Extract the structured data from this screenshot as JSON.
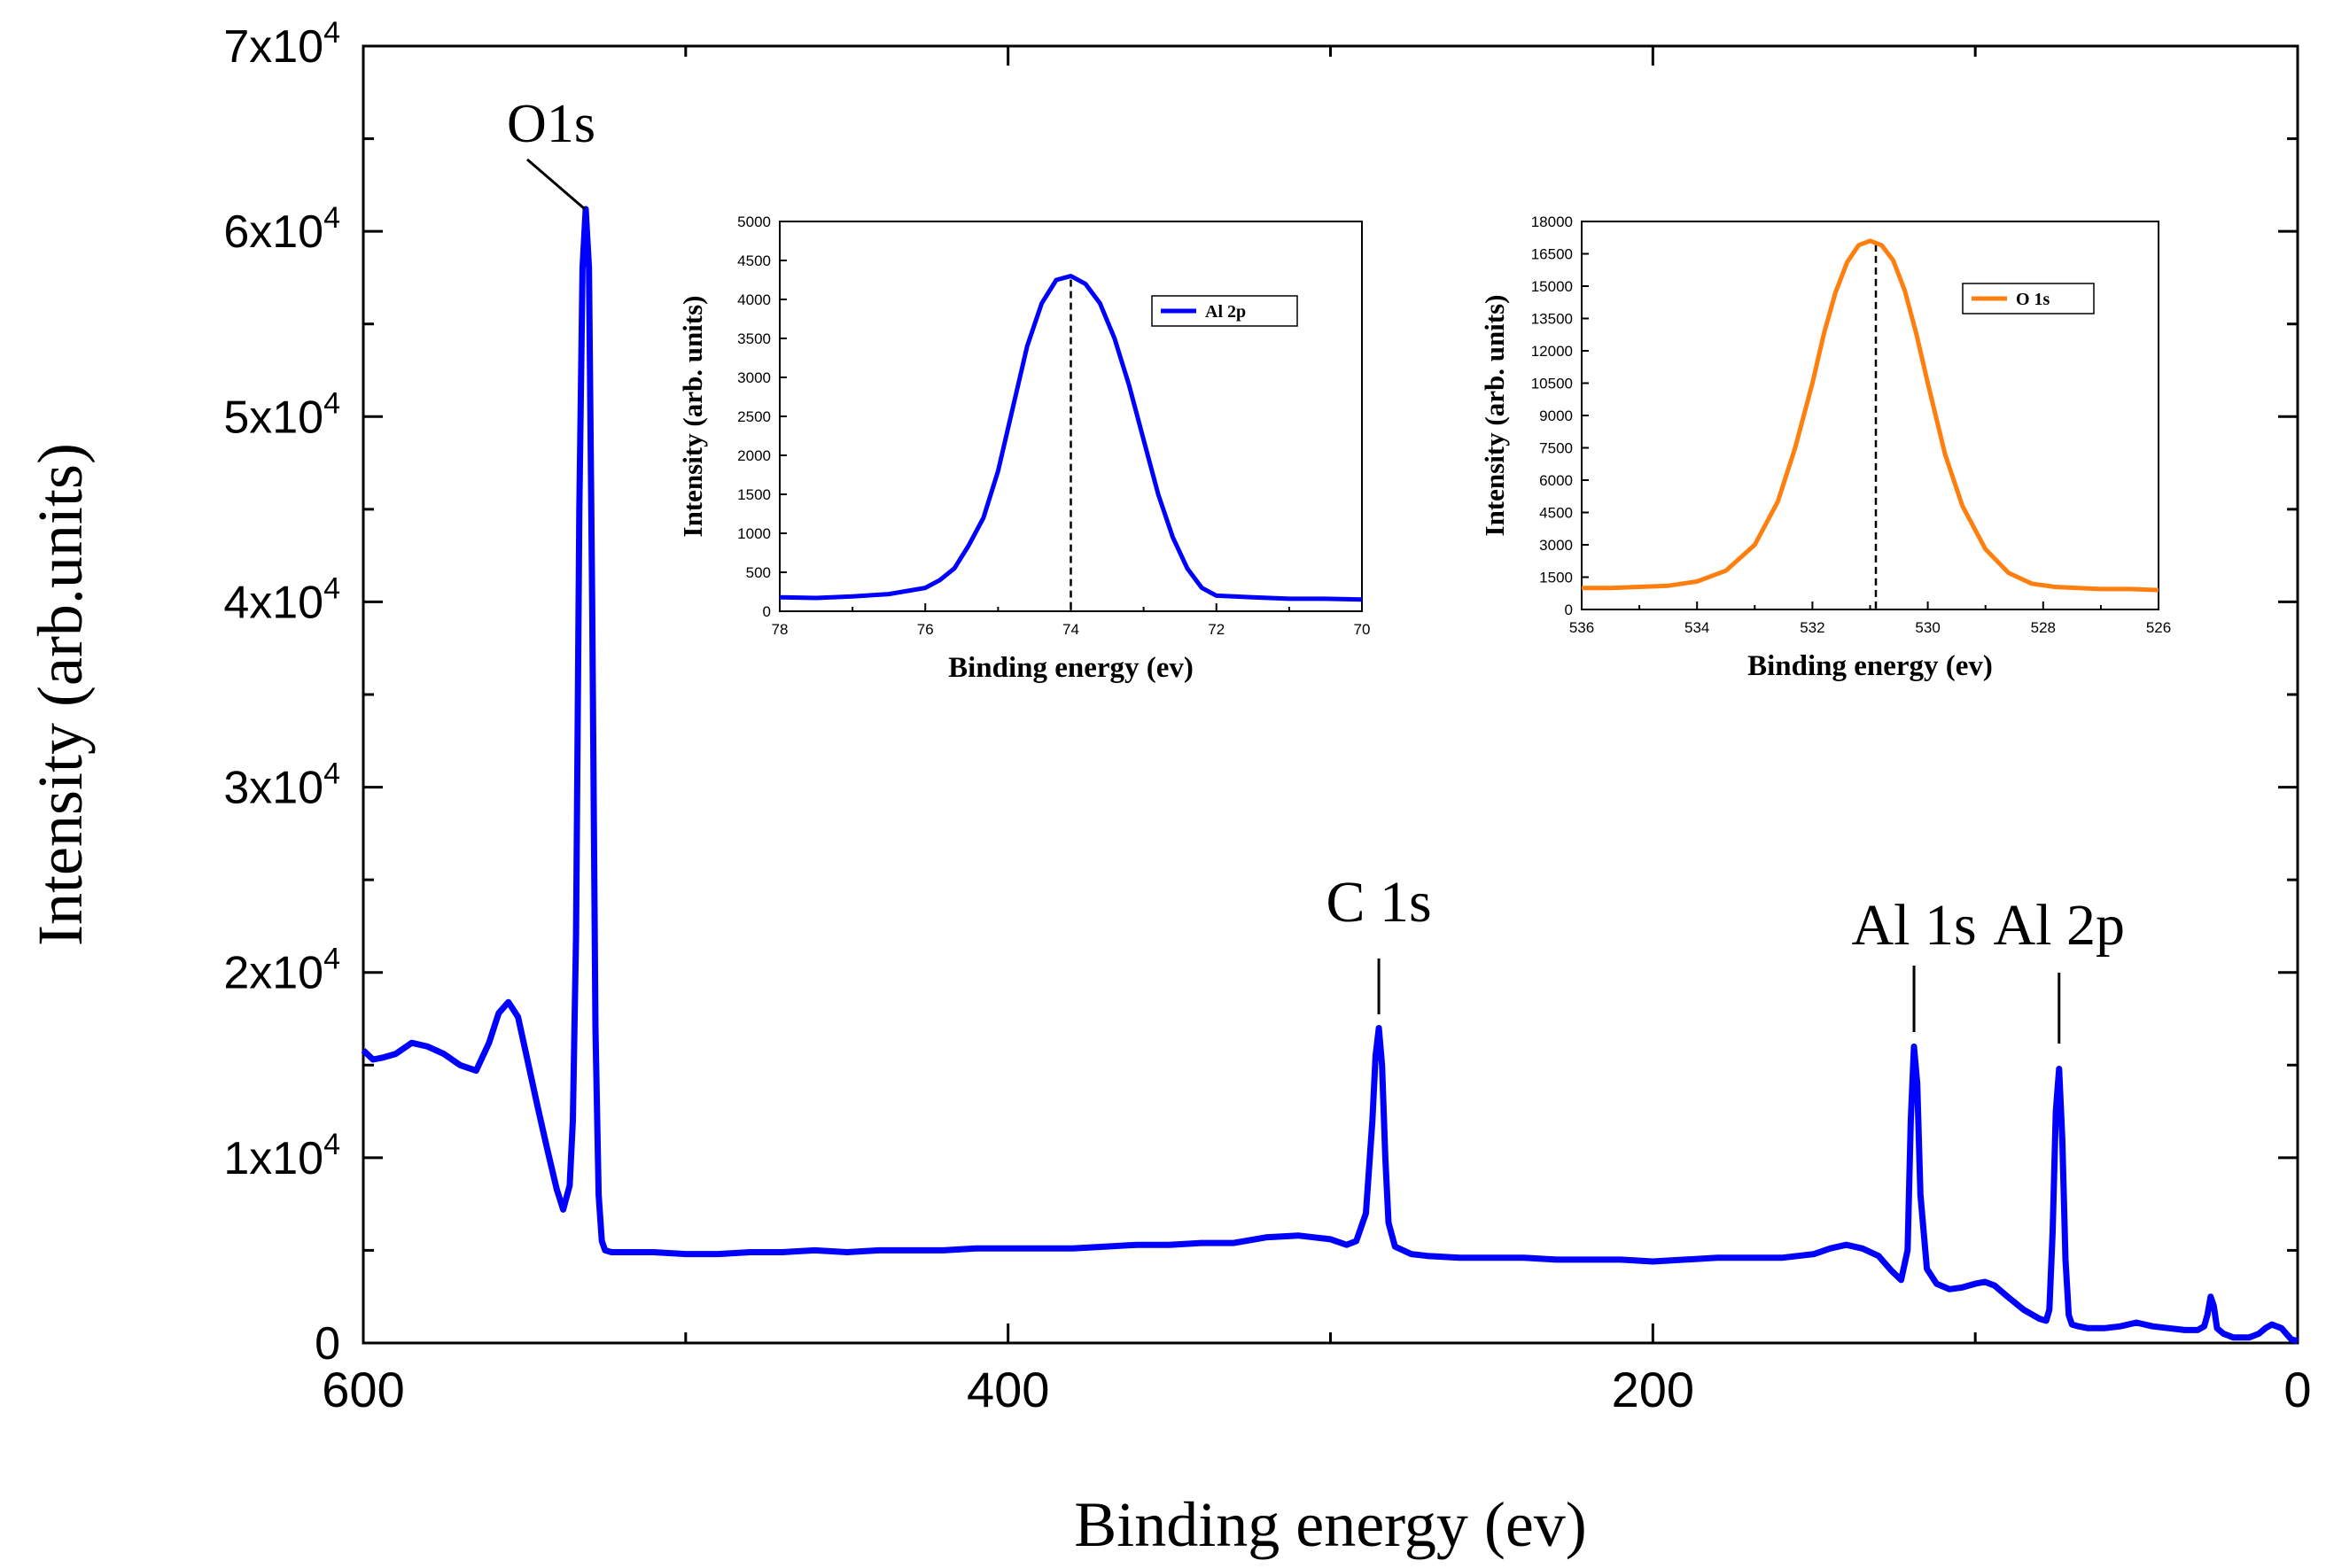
{
  "main": {
    "ylabel": "Intensity (arb.units)",
    "xlabel": "Binding energy (ev)",
    "x_ticks": [
      600,
      400,
      200,
      0
    ],
    "y_ticks": [
      {
        "value": 0,
        "mant": "0",
        "exp": ""
      },
      {
        "value": 10000,
        "mant": "1x10",
        "exp": "4"
      },
      {
        "value": 20000,
        "mant": "2x10",
        "exp": "4"
      },
      {
        "value": 30000,
        "mant": "3x10",
        "exp": "4"
      },
      {
        "value": 40000,
        "mant": "4x10",
        "exp": "4"
      },
      {
        "value": 50000,
        "mant": "5x10",
        "exp": "4"
      },
      {
        "value": 60000,
        "mant": "6x10",
        "exp": "4"
      },
      {
        "value": 70000,
        "mant": "7x10",
        "exp": "4"
      }
    ],
    "annotations": [
      {
        "label": "O1s",
        "energy": 531
      },
      {
        "label": "C 1s",
        "energy": 285
      },
      {
        "label": "Al 1s",
        "energy": 119
      },
      {
        "label": "Al 2p",
        "energy": 74
      }
    ],
    "color": "#0000ff"
  },
  "chart_data": [
    {
      "type": "line",
      "xlabel": "Binding energy (ev)",
      "ylabel": "Intensity (arb.units)",
      "xlim": [
        600,
        0
      ],
      "ylim": [
        0,
        70000
      ],
      "x_reversed": true,
      "series": [
        {
          "x": [
            600,
            597,
            594,
            590,
            585,
            580,
            575,
            570,
            565,
            561,
            558,
            555,
            552,
            549,
            546,
            543,
            540,
            538,
            536,
            535,
            534,
            533,
            532,
            531,
            530,
            529,
            528,
            527,
            526,
            525,
            523,
            520,
            510,
            500,
            490,
            480,
            470,
            460,
            450,
            440,
            430,
            420,
            410,
            400,
            390,
            380,
            370,
            360,
            350,
            340,
            330,
            320,
            310,
            305,
            300,
            295,
            292,
            289,
            287,
            286,
            285,
            284,
            283,
            282,
            280,
            275,
            270,
            260,
            250,
            240,
            230,
            220,
            210,
            200,
            190,
            180,
            170,
            160,
            150,
            145,
            140,
            135,
            130,
            126,
            123,
            121,
            120,
            119,
            118,
            117,
            115,
            112,
            108,
            104,
            100,
            97,
            94,
            90,
            85,
            80,
            78,
            77,
            76,
            75,
            74,
            73,
            72,
            71,
            70,
            68,
            65,
            60,
            55,
            50,
            45,
            40,
            35,
            31,
            29,
            28,
            27,
            26,
            25,
            23,
            20,
            15,
            12,
            10,
            8,
            5,
            2,
            0
          ],
          "y": [
            15800,
            15300,
            15400,
            15600,
            16200,
            16000,
            15600,
            15000,
            14700,
            16200,
            17800,
            18400,
            17600,
            15200,
            12800,
            10500,
            8300,
            7200,
            8500,
            12000,
            22000,
            45000,
            58000,
            61200,
            58000,
            40000,
            17000,
            8000,
            5500,
            5000,
            4900,
            4900,
            4900,
            4800,
            4800,
            4900,
            4900,
            5000,
            4900,
            5000,
            5000,
            5000,
            5100,
            5100,
            5100,
            5100,
            5200,
            5300,
            5300,
            5400,
            5400,
            5700,
            5800,
            5700,
            5600,
            5300,
            5500,
            7000,
            12000,
            15500,
            17000,
            15000,
            10000,
            6500,
            5200,
            4800,
            4700,
            4600,
            4600,
            4600,
            4500,
            4500,
            4500,
            4400,
            4500,
            4600,
            4600,
            4600,
            4800,
            5100,
            5300,
            5100,
            4700,
            3900,
            3400,
            5000,
            12000,
            16000,
            14000,
            8000,
            4000,
            3200,
            2900,
            3000,
            3200,
            3300,
            3100,
            2500,
            1800,
            1300,
            1200,
            1800,
            6000,
            12500,
            14800,
            11000,
            4500,
            1500,
            1000,
            900,
            800,
            800,
            900,
            1100,
            900,
            800,
            700,
            700,
            900,
            1500,
            2500,
            2000,
            800,
            500,
            300,
            300,
            500,
            800,
            1000,
            800,
            200,
            100
          ]
        }
      ]
    },
    {
      "type": "line",
      "xlabel": "Binding energy (ev)",
      "ylabel": "Intensity (arb. units)",
      "xlim": [
        78,
        70
      ],
      "ylim": [
        0,
        5000
      ],
      "x_reversed": true,
      "x_ticks": [
        78,
        76,
        74,
        72,
        70
      ],
      "y_ticks": [
        0,
        500,
        1000,
        1500,
        2000,
        2500,
        3000,
        3500,
        4000,
        4500,
        5000
      ],
      "peak_marker": 74.0,
      "series": [
        {
          "name": "Al 2p",
          "color": "#0000ff",
          "x": [
            78,
            77.5,
            77,
            76.5,
            76,
            75.8,
            75.6,
            75.4,
            75.2,
            75.0,
            74.8,
            74.6,
            74.4,
            74.2,
            74.0,
            73.8,
            73.6,
            73.4,
            73.2,
            73.0,
            72.8,
            72.6,
            72.4,
            72.2,
            72.0,
            71.5,
            71.0,
            70.5,
            70.0
          ],
          "y": [
            180,
            170,
            190,
            220,
            300,
            400,
            550,
            850,
            1200,
            1800,
            2600,
            3400,
            3950,
            4250,
            4300,
            4200,
            3950,
            3500,
            2900,
            2200,
            1500,
            950,
            550,
            300,
            200,
            180,
            160,
            160,
            150
          ]
        }
      ]
    },
    {
      "type": "line",
      "xlabel": "Binding energy (ev)",
      "ylabel": "Intensity (arb. units)",
      "xlim": [
        536,
        526
      ],
      "ylim": [
        0,
        18000
      ],
      "x_reversed": true,
      "x_ticks": [
        536,
        534,
        532,
        530,
        528,
        526
      ],
      "y_ticks": [
        0,
        1500,
        3000,
        4500,
        6000,
        7500,
        9000,
        10500,
        12000,
        13500,
        15000,
        16500,
        18000
      ],
      "y_tick_labels": [
        "0",
        "1500",
        "3000",
        "4500",
        "6000",
        "7500",
        "9000",
        "10500",
        "12000",
        "13500",
        "15000",
        "16500",
        "18000"
      ],
      "peak_marker": 530.9,
      "series": [
        {
          "name": "O 1s",
          "color": "#ff7f0e",
          "x": [
            536,
            535.5,
            535,
            534.5,
            534,
            533.5,
            533,
            532.6,
            532.3,
            532,
            531.8,
            531.6,
            531.4,
            531.2,
            531.0,
            530.8,
            530.6,
            530.4,
            530.2,
            530.0,
            529.7,
            529.4,
            529.0,
            528.6,
            528.2,
            527.8,
            527.4,
            527.0,
            526.5,
            526.0
          ],
          "y": [
            1000,
            1000,
            1050,
            1100,
            1300,
            1800,
            3000,
            5000,
            7500,
            10500,
            12800,
            14700,
            16100,
            16900,
            17100,
            16900,
            16200,
            14800,
            12800,
            10500,
            7200,
            4800,
            2800,
            1700,
            1200,
            1050,
            1000,
            950,
            950,
            900
          ]
        }
      ]
    }
  ]
}
